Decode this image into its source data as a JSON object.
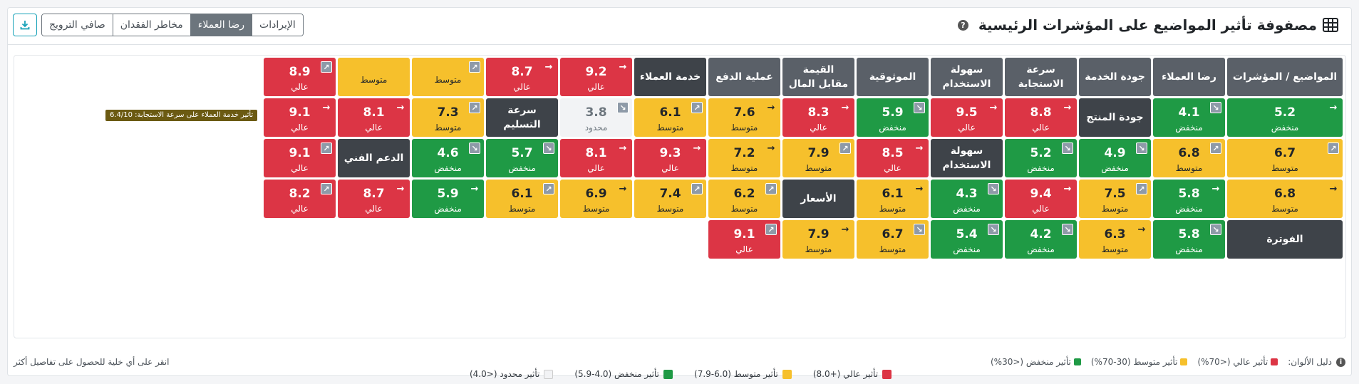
{
  "header": {
    "title": "مصفوفة تأثير المواضيع على المؤشرات الرئيسية",
    "help": "?",
    "tabs": [
      "الإيرادات",
      "رضا العملاء",
      "مخاطر الفقدان",
      "صافي الترويج"
    ],
    "active_tab": 1,
    "download_icon": "download-icon"
  },
  "matrix": {
    "corner_header": "المواضيع / المؤشرات",
    "rows": [
      {
        "cells": [
          {
            "t": "head",
            "label": "المواضيع / المؤشرات"
          },
          {
            "t": "head",
            "label": "رضا العملاء"
          },
          {
            "t": "head",
            "label": "جودة الخدمة"
          },
          {
            "t": "head",
            "label": "سرعة الاستجابة"
          },
          {
            "t": "head",
            "label": "سهولة الاستخدام"
          },
          {
            "t": "head",
            "label": "الموثوقية"
          },
          {
            "t": "head",
            "label": "القيمة مقابل المال"
          },
          {
            "t": "head",
            "label": "عملية الدفع"
          },
          {
            "t": "topic",
            "label": "خدمة العملاء"
          },
          {
            "t": "high",
            "v": "9.2",
            "l": "عالي",
            "a": "→"
          },
          {
            "t": "high",
            "v": "8.7",
            "l": "عالي",
            "a": "→"
          },
          {
            "t": "mid",
            "v": "",
            "l": "متوسط",
            "a": "↗"
          },
          {
            "t": "mid",
            "v": "",
            "l": "متوسط",
            "a": ""
          },
          {
            "t": "high",
            "v": "8.9",
            "l": "عالي",
            "a": "↗"
          }
        ]
      },
      {
        "cells": [
          {
            "t": "low",
            "v": "5.2",
            "l": "منخفض",
            "a": "→"
          },
          {
            "t": "low",
            "v": "4.1",
            "l": "منخفض",
            "a": "↘"
          },
          {
            "t": "topic",
            "label": "جودة المنتج"
          },
          {
            "t": "high",
            "v": "8.8",
            "l": "عالي",
            "a": "→"
          },
          {
            "t": "high",
            "v": "9.5",
            "l": "عالي",
            "a": "→"
          },
          {
            "t": "low",
            "v": "5.9",
            "l": "منخفض",
            "a": "↘"
          },
          {
            "t": "high",
            "v": "8.3",
            "l": "عالي",
            "a": "→"
          },
          {
            "t": "mid",
            "v": "7.6",
            "l": "متوسط",
            "a": "→"
          },
          {
            "t": "mid",
            "v": "6.1",
            "l": "متوسط",
            "a": "↗"
          },
          {
            "t": "lim",
            "v": "3.8",
            "l": "محدود",
            "a": "↘"
          },
          {
            "t": "topic",
            "label": "سرعة التسليم"
          },
          {
            "t": "mid",
            "v": "7.3",
            "l": "متوسط",
            "a": "↗"
          },
          {
            "t": "high",
            "v": "8.1",
            "l": "عالي",
            "a": "→"
          },
          {
            "t": "high",
            "v": "9.1",
            "l": "عالي",
            "a": "→"
          }
        ]
      },
      {
        "cells": [
          {
            "t": "mid",
            "v": "6.7",
            "l": "متوسط",
            "a": "↗"
          },
          {
            "t": "mid",
            "v": "6.8",
            "l": "متوسط",
            "a": "↗"
          },
          {
            "t": "low",
            "v": "4.9",
            "l": "منخفض",
            "a": "↘"
          },
          {
            "t": "low",
            "v": "5.2",
            "l": "منخفض",
            "a": "↘"
          },
          {
            "t": "topic",
            "label": "سهولة الاستخدام"
          },
          {
            "t": "high",
            "v": "8.5",
            "l": "عالي",
            "a": "→"
          },
          {
            "t": "mid",
            "v": "7.9",
            "l": "متوسط",
            "a": "↗"
          },
          {
            "t": "mid",
            "v": "7.2",
            "l": "متوسط",
            "a": "→"
          },
          {
            "t": "high",
            "v": "9.3",
            "l": "عالي",
            "a": "→"
          },
          {
            "t": "high",
            "v": "8.1",
            "l": "عالي",
            "a": "→"
          },
          {
            "t": "low",
            "v": "5.7",
            "l": "منخفض",
            "a": "↘"
          },
          {
            "t": "low",
            "v": "4.6",
            "l": "منخفض",
            "a": "↘"
          },
          {
            "t": "topic",
            "label": "الدعم الفني"
          },
          {
            "t": "high",
            "v": "9.1",
            "l": "عالي",
            "a": "↗"
          }
        ]
      },
      {
        "cells": [
          {
            "t": "mid",
            "v": "6.8",
            "l": "متوسط",
            "a": "→"
          },
          {
            "t": "low",
            "v": "5.8",
            "l": "منخفض",
            "a": "→"
          },
          {
            "t": "mid",
            "v": "7.5",
            "l": "متوسط",
            "a": "↗"
          },
          {
            "t": "high",
            "v": "9.4",
            "l": "عالي",
            "a": "→"
          },
          {
            "t": "low",
            "v": "4.3",
            "l": "منخفض",
            "a": "↘"
          },
          {
            "t": "mid",
            "v": "6.1",
            "l": "متوسط",
            "a": "→"
          },
          {
            "t": "topic",
            "label": "الأسعار"
          },
          {
            "t": "mid",
            "v": "6.2",
            "l": "متوسط",
            "a": "↗"
          },
          {
            "t": "mid",
            "v": "7.4",
            "l": "متوسط",
            "a": "↗"
          },
          {
            "t": "mid",
            "v": "6.9",
            "l": "متوسط",
            "a": "→"
          },
          {
            "t": "mid",
            "v": "6.1",
            "l": "متوسط",
            "a": "↗"
          },
          {
            "t": "low",
            "v": "5.9",
            "l": "منخفض",
            "a": "→"
          },
          {
            "t": "high",
            "v": "8.7",
            "l": "عالي",
            "a": "→"
          },
          {
            "t": "high",
            "v": "8.2",
            "l": "عالي",
            "a": "↗"
          }
        ]
      },
      {
        "cells": [
          {
            "t": "topic",
            "label": "الفوترة"
          },
          {
            "t": "low",
            "v": "5.8",
            "l": "منخفض",
            "a": "↘"
          },
          {
            "t": "mid",
            "v": "6.3",
            "l": "متوسط",
            "a": "→"
          },
          {
            "t": "low",
            "v": "4.2",
            "l": "منخفض",
            "a": "↘"
          },
          {
            "t": "low",
            "v": "5.4",
            "l": "منخفض",
            "a": "↘"
          },
          {
            "t": "mid",
            "v": "6.7",
            "l": "متوسط",
            "a": "↘"
          },
          {
            "t": "mid",
            "v": "7.9",
            "l": "متوسط",
            "a": "→"
          },
          {
            "t": "high",
            "v": "9.1",
            "l": "عالي",
            "a": "↗"
          }
        ]
      }
    ],
    "tooltip": "تأثير خدمة العملاء على سرعة الاستجابة: 6.4/10"
  },
  "legend": [
    {
      "label": "تأثير عالي (+8.0)",
      "color": "#dc3545"
    },
    {
      "label": "تأثير متوسط (6.0-7.9)",
      "color": "#f6c02c"
    },
    {
      "label": "تأثير منخفض (4.0-5.9)",
      "color": "#1f9a45"
    },
    {
      "label": "تأثير محدود (<4.0)",
      "color": "#f2f3f5"
    }
  ],
  "footer": {
    "guide_label": "دليل الألوان:",
    "guide": [
      {
        "label": "تأثير عالي (<70%)",
        "color": "#dc3545"
      },
      {
        "label": "تأثير متوسط (30-70%)",
        "color": "#f6c02c"
      },
      {
        "label": "تأثير منخفض (<30%)",
        "color": "#1f9a45"
      }
    ],
    "note": "انقر على أي خلية للحصول على تفاصيل أكثر"
  }
}
